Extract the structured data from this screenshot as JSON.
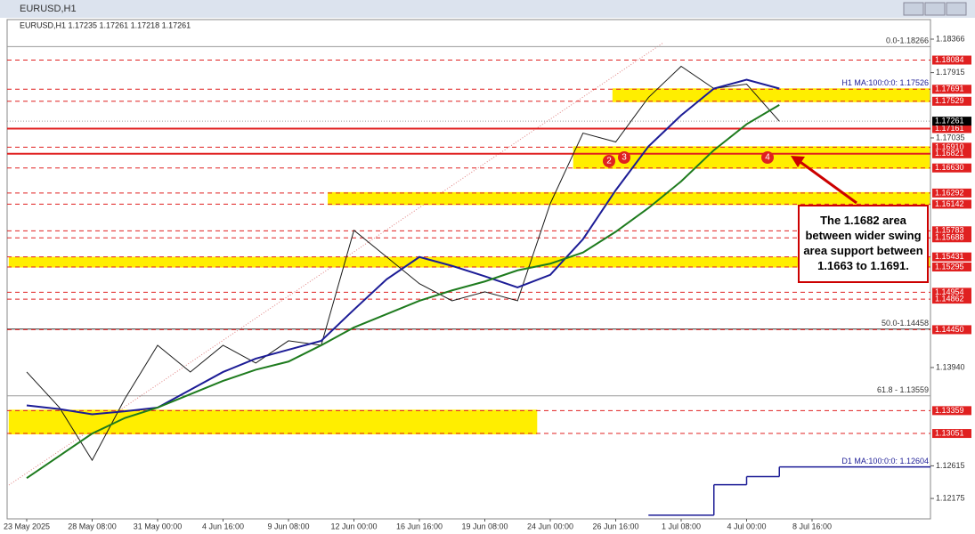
{
  "chart_data": {
    "type": "line",
    "window_title": "EURUSD,H1",
    "title": "EURUSD,H1  1.17235 1.17261 1.17218 1.17261",
    "categories": [
      "23 May 2025",
      null,
      "28 May 08:00",
      null,
      "31 May 00:00",
      null,
      "4 Jun 16:00",
      null,
      "9 Jun 08:00",
      null,
      "12 Jun 00:00",
      null,
      "16 Jun 16:00",
      null,
      "19 Jun 08:00",
      null,
      "24 Jun 00:00",
      null,
      "26 Jun 16:00",
      null,
      "1 Jul 08:00",
      null,
      "4 Jul 00:00",
      null,
      "8 Jul 16:00"
    ],
    "series": [
      {
        "color": "#1a1a1a",
        "values": [
          1.1388,
          1.134,
          1.1269,
          1.1352,
          1.1424,
          1.1388,
          1.1424,
          1.14,
          1.143,
          1.1424,
          1.1579,
          1.1543,
          1.1507,
          1.1484,
          1.1496,
          1.1484,
          1.1615,
          1.171,
          1.1698,
          1.1758,
          1.18,
          1.177,
          1.1776,
          1.1726,
          null
        ]
      },
      {
        "name": "H1 MA:100:0:0: 1.17526",
        "color": "#1c1c96",
        "values": [
          1.1343,
          1.1338,
          1.1331,
          1.1335,
          1.134,
          1.1364,
          1.1388,
          1.1406,
          1.1418,
          1.143,
          1.1472,
          1.1513,
          1.1543,
          1.1531,
          1.1517,
          1.1502,
          1.1519,
          1.1567,
          1.1633,
          1.1692,
          1.1734,
          1.177,
          1.1782,
          1.177,
          null
        ]
      },
      {
        "color": "#1e7b1e",
        "values": [
          1.1245,
          1.1275,
          1.1305,
          1.1326,
          1.134,
          1.1358,
          1.1376,
          1.1391,
          1.1402,
          1.1424,
          1.1448,
          1.1466,
          1.1484,
          1.1498,
          1.151,
          1.1525,
          1.1534,
          1.1549,
          1.1577,
          1.1609,
          1.1645,
          1.1687,
          1.1722,
          1.1748,
          null
        ]
      },
      {
        "name": "D1 MA:100:0:0: 1.12604",
        "color": "#1c1c96",
        "step": true,
        "values": [
          null,
          null,
          null,
          null,
          null,
          null,
          null,
          null,
          null,
          null,
          null,
          null,
          null,
          null,
          null,
          null,
          null,
          null,
          null,
          1.1195,
          1.1195,
          1.1236,
          1.1247,
          1.126,
          1.126
        ]
      }
    ],
    "ylim": [
      1.119,
      1.1863
    ],
    "yticks": [
      1.18366,
      1.17915,
      1.17035,
      {
        "value": 1.1394,
        "label": "1.13940"
      },
      1.12615,
      1.12175
    ],
    "levels": [
      1.18084,
      1.17691,
      1.17529,
      1.17161,
      {
        "value": 1.1691,
        "label": "1.16910"
      },
      1.16821,
      {
        "value": 1.1663,
        "label": "1.16630"
      },
      1.16292,
      1.16142,
      1.15783,
      1.15688,
      1.15431,
      1.15295,
      1.14954,
      1.14862,
      {
        "value": 1.1445,
        "label": "1.14450"
      },
      1.13359,
      1.13051
    ],
    "level_styles": [
      "dashed",
      "dashed",
      "dashed",
      "solid",
      "dashed",
      "solid",
      "dashed",
      "dashed",
      "dashed",
      "dashed",
      "dashed",
      "dashed",
      "dashed",
      "dashed",
      "dashed",
      "dashed",
      "dashed",
      "dashed"
    ],
    "current_price": 1.17261,
    "fib_levels": [
      {
        "value": 1.18266,
        "label": "0.0-1.18266"
      },
      {
        "value": 1.14458,
        "label": "50.0-1.14458"
      },
      {
        "value": 1.13559,
        "label": "61.8 - 1.13559"
      }
    ],
    "zones": [
      {
        "low": 1.17529,
        "high": 1.17691,
        "start": 17.9,
        "end": 27.6
      },
      {
        "low": 1.1663,
        "high": 1.1691,
        "start": 16.7,
        "end": 27.6
      },
      {
        "low": 1.16142,
        "high": 1.16292,
        "start": 9.2,
        "end": 27.6
      },
      {
        "low": 1.153,
        "high": 1.1542,
        "start": -0.55,
        "end": 27.6
      },
      {
        "low": 1.13051,
        "high": 1.13359,
        "start": -0.55,
        "end": 15.6
      }
    ],
    "markers": [
      "2",
      "3",
      "4"
    ],
    "callout": "The 1.1682 area between wider swing area support between 1.1663 to 1.1691."
  }
}
